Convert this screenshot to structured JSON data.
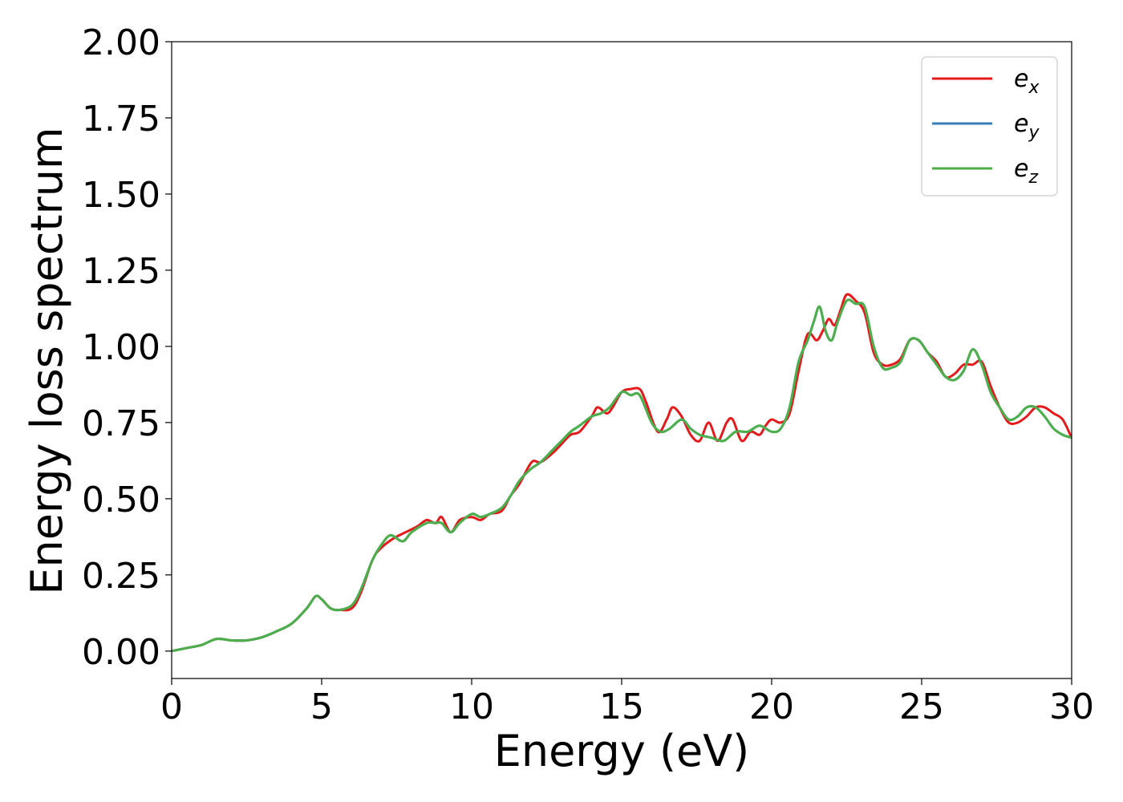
{
  "chart_data": {
    "type": "line",
    "title": "",
    "xlabel": "Energy (eV)",
    "ylabel": "Energy loss spectrum",
    "xlim": [
      0,
      30
    ],
    "ylim": [
      -0.09,
      2.0
    ],
    "xticks": [
      0,
      5,
      10,
      15,
      20,
      25,
      30
    ],
    "yticks": [
      0.0,
      0.25,
      0.5,
      0.75,
      1.0,
      1.25,
      1.5,
      1.75,
      2.0
    ],
    "xtick_labels": [
      "0",
      "5",
      "10",
      "15",
      "20",
      "25",
      "30"
    ],
    "ytick_labels": [
      "0.00",
      "0.25",
      "0.50",
      "0.75",
      "1.00",
      "1.25",
      "1.50",
      "1.75",
      "2.00"
    ],
    "grid": false,
    "legend": {
      "position": "top-right"
    },
    "series": [
      {
        "name": "e_x",
        "label_base": "e",
        "label_sub": "x",
        "color": "#e41a1c",
        "x": [
          0,
          0.5,
          1.0,
          1.5,
          2.0,
          2.5,
          3.0,
          3.5,
          4.0,
          4.5,
          4.8,
          5.0,
          5.3,
          5.6,
          6.0,
          6.3,
          6.7,
          7.0,
          7.4,
          7.8,
          8.2,
          8.5,
          8.8,
          9.0,
          9.3,
          9.6,
          10.0,
          10.3,
          10.6,
          11.0,
          11.3,
          11.6,
          12.0,
          12.3,
          12.7,
          13.0,
          13.3,
          13.6,
          14.0,
          14.2,
          14.5,
          14.7,
          15.0,
          15.3,
          15.6,
          15.8,
          16.2,
          16.5,
          16.7,
          17.0,
          17.3,
          17.6,
          17.9,
          18.2,
          18.5,
          18.7,
          19.0,
          19.3,
          19.6,
          19.8,
          20.0,
          20.3,
          20.6,
          20.9,
          21.2,
          21.5,
          21.7,
          21.9,
          22.1,
          22.3,
          22.5,
          22.8,
          23.1,
          23.4,
          23.7,
          24.0,
          24.3,
          24.6,
          24.9,
          25.2,
          25.5,
          25.8,
          26.1,
          26.4,
          26.7,
          27.0,
          27.3,
          27.6,
          27.9,
          28.2,
          28.5,
          28.8,
          29.1,
          29.4,
          29.7,
          30.0
        ],
        "y": [
          0.0,
          0.01,
          0.02,
          0.04,
          0.035,
          0.035,
          0.045,
          0.065,
          0.09,
          0.14,
          0.18,
          0.17,
          0.14,
          0.135,
          0.14,
          0.19,
          0.3,
          0.34,
          0.37,
          0.39,
          0.41,
          0.43,
          0.42,
          0.44,
          0.39,
          0.43,
          0.44,
          0.43,
          0.45,
          0.46,
          0.51,
          0.55,
          0.62,
          0.62,
          0.65,
          0.68,
          0.71,
          0.72,
          0.77,
          0.8,
          0.78,
          0.8,
          0.85,
          0.86,
          0.86,
          0.82,
          0.72,
          0.76,
          0.8,
          0.77,
          0.71,
          0.69,
          0.75,
          0.69,
          0.75,
          0.76,
          0.69,
          0.72,
          0.71,
          0.74,
          0.76,
          0.75,
          0.78,
          0.92,
          1.04,
          1.02,
          1.05,
          1.09,
          1.07,
          1.12,
          1.17,
          1.15,
          1.11,
          0.98,
          0.94,
          0.94,
          0.96,
          1.02,
          1.02,
          0.98,
          0.95,
          0.9,
          0.91,
          0.94,
          0.94,
          0.95,
          0.87,
          0.8,
          0.75,
          0.75,
          0.77,
          0.8,
          0.8,
          0.78,
          0.76,
          0.7
        ]
      },
      {
        "name": "e_y",
        "label_base": "e",
        "label_sub": "y",
        "color": "#377eb8",
        "x": [
          0,
          0.5,
          1.0,
          1.5,
          2.0,
          2.5,
          3.0,
          3.5,
          4.0,
          4.5,
          4.8,
          5.0,
          5.3,
          5.6,
          6.0,
          6.3,
          6.7,
          7.0,
          7.3,
          7.7,
          8.0,
          8.5,
          8.8,
          9.0,
          9.3,
          9.6,
          10.0,
          10.3,
          10.6,
          11.0,
          11.3,
          11.6,
          12.0,
          12.3,
          12.7,
          13.0,
          13.3,
          13.6,
          14.0,
          14.3,
          14.6,
          15.0,
          15.3,
          15.6,
          16.0,
          16.3,
          16.6,
          17.0,
          17.3,
          17.6,
          18.0,
          18.4,
          18.8,
          19.2,
          19.6,
          20.0,
          20.3,
          20.6,
          20.9,
          21.2,
          21.4,
          21.6,
          21.8,
          22.0,
          22.2,
          22.5,
          22.8,
          23.1,
          23.4,
          23.7,
          24.0,
          24.3,
          24.6,
          24.9,
          25.2,
          25.5,
          25.8,
          26.1,
          26.4,
          26.7,
          27.0,
          27.3,
          27.6,
          27.9,
          28.2,
          28.5,
          28.8,
          29.1,
          29.4,
          29.7,
          30.0
        ],
        "y": [
          0.0,
          0.01,
          0.02,
          0.04,
          0.035,
          0.035,
          0.045,
          0.065,
          0.09,
          0.14,
          0.18,
          0.17,
          0.14,
          0.135,
          0.15,
          0.2,
          0.3,
          0.35,
          0.38,
          0.36,
          0.39,
          0.42,
          0.42,
          0.42,
          0.39,
          0.42,
          0.45,
          0.44,
          0.45,
          0.47,
          0.51,
          0.56,
          0.6,
          0.62,
          0.66,
          0.69,
          0.72,
          0.74,
          0.77,
          0.78,
          0.8,
          0.85,
          0.84,
          0.84,
          0.75,
          0.72,
          0.73,
          0.76,
          0.73,
          0.71,
          0.7,
          0.69,
          0.72,
          0.72,
          0.74,
          0.72,
          0.73,
          0.8,
          0.95,
          1.02,
          1.08,
          1.13,
          1.05,
          1.02,
          1.08,
          1.15,
          1.14,
          1.13,
          1.0,
          0.93,
          0.93,
          0.95,
          1.02,
          1.02,
          0.98,
          0.94,
          0.9,
          0.89,
          0.92,
          0.99,
          0.94,
          0.85,
          0.8,
          0.76,
          0.77,
          0.8,
          0.8,
          0.77,
          0.73,
          0.71,
          0.7
        ]
      },
      {
        "name": "e_z",
        "label_base": "e",
        "label_sub": "z",
        "color": "#4daf4a",
        "x": [
          0,
          0.5,
          1.0,
          1.5,
          2.0,
          2.5,
          3.0,
          3.5,
          4.0,
          4.5,
          4.8,
          5.0,
          5.3,
          5.6,
          6.0,
          6.3,
          6.7,
          7.0,
          7.3,
          7.7,
          8.0,
          8.5,
          8.8,
          9.0,
          9.3,
          9.6,
          10.0,
          10.3,
          10.6,
          11.0,
          11.3,
          11.6,
          12.0,
          12.3,
          12.7,
          13.0,
          13.3,
          13.6,
          14.0,
          14.3,
          14.6,
          15.0,
          15.3,
          15.6,
          16.0,
          16.3,
          16.6,
          17.0,
          17.3,
          17.6,
          18.0,
          18.4,
          18.8,
          19.2,
          19.6,
          20.0,
          20.3,
          20.6,
          20.9,
          21.2,
          21.4,
          21.6,
          21.8,
          22.0,
          22.2,
          22.5,
          22.8,
          23.1,
          23.4,
          23.7,
          24.0,
          24.3,
          24.6,
          24.9,
          25.2,
          25.5,
          25.8,
          26.1,
          26.4,
          26.7,
          27.0,
          27.3,
          27.6,
          27.9,
          28.2,
          28.5,
          28.8,
          29.1,
          29.4,
          29.7,
          30.0
        ],
        "y": [
          0.0,
          0.01,
          0.02,
          0.04,
          0.035,
          0.035,
          0.045,
          0.065,
          0.09,
          0.14,
          0.18,
          0.17,
          0.14,
          0.135,
          0.15,
          0.2,
          0.3,
          0.35,
          0.38,
          0.36,
          0.39,
          0.42,
          0.42,
          0.42,
          0.39,
          0.42,
          0.45,
          0.44,
          0.45,
          0.47,
          0.51,
          0.56,
          0.6,
          0.62,
          0.66,
          0.69,
          0.72,
          0.74,
          0.77,
          0.78,
          0.8,
          0.85,
          0.84,
          0.84,
          0.75,
          0.72,
          0.73,
          0.76,
          0.73,
          0.71,
          0.7,
          0.69,
          0.72,
          0.72,
          0.74,
          0.72,
          0.73,
          0.8,
          0.95,
          1.02,
          1.08,
          1.13,
          1.05,
          1.02,
          1.08,
          1.15,
          1.14,
          1.13,
          1.0,
          0.93,
          0.93,
          0.95,
          1.02,
          1.02,
          0.98,
          0.94,
          0.9,
          0.89,
          0.92,
          0.99,
          0.94,
          0.85,
          0.8,
          0.76,
          0.77,
          0.8,
          0.8,
          0.77,
          0.73,
          0.71,
          0.7
        ]
      }
    ]
  }
}
